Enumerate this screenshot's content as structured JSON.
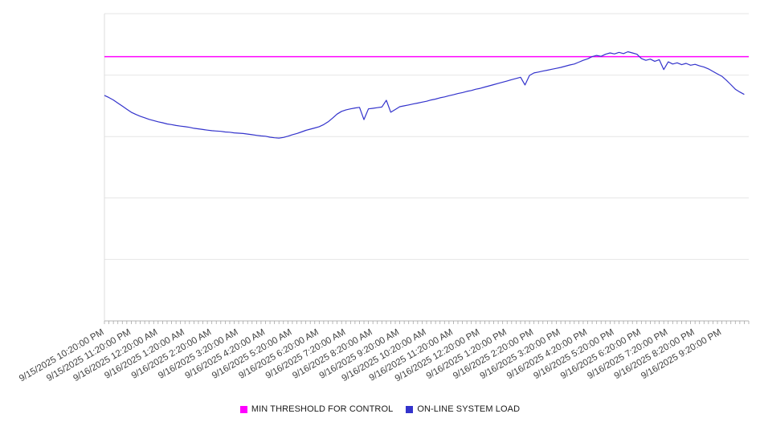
{
  "chart_data": {
    "type": "line",
    "title": "",
    "x_axis": {
      "domain_minutes": [
        0,
        1440
      ],
      "label_interval_minutes": 60,
      "minor_tick_minutes": 10,
      "tick_labels": [
        "9/15/2025 10:20:00 PM",
        "9/15/2025 11:20:00 PM",
        "9/16/2025 12:20:00 AM",
        "9/16/2025 1:20:00 AM",
        "9/16/2025 2:20:00 AM",
        "9/16/2025 3:20:00 AM",
        "9/16/2025 4:20:00 AM",
        "9/16/2025 5:20:00 AM",
        "9/16/2025 6:20:00 AM",
        "9/16/2025 7:20:00 AM",
        "9/16/2025 8:20:00 AM",
        "9/16/2025 9:20:00 AM",
        "9/16/2025 10:20:00 AM",
        "9/16/2025 11:20:00 AM",
        "9/16/2025 12:20:00 PM",
        "9/16/2025 1:20:00 PM",
        "9/16/2025 2:20:00 PM",
        "9/16/2025 3:20:00 PM",
        "9/16/2025 4:20:00 PM",
        "9/16/2025 5:20:00 PM",
        "9/16/2025 6:20:00 PM",
        "9/16/2025 7:20:00 PM",
        "9/16/2025 8:20:00 PM",
        "9/16/2025 9:20:00 PM"
      ]
    },
    "y_axis": {
      "min": 0,
      "max": 100,
      "gridline_step": 20,
      "labels_visible": false
    },
    "grid": true,
    "legend_position": "bottom-center",
    "series": [
      {
        "name": "MIN THRESHOLD FOR CONTROL",
        "type": "horizontal-threshold",
        "color": "#ff00ff",
        "value": 86
      },
      {
        "name": "ON-LINE SYSTEM LOAD",
        "type": "line",
        "color": "#3333cc",
        "interval_minutes": 10,
        "start_minute": 0,
        "values": [
          73.4,
          72.7,
          71.9,
          70.9,
          69.9,
          68.9,
          67.9,
          67.2,
          66.6,
          66.1,
          65.6,
          65.2,
          64.8,
          64.5,
          64.1,
          63.9,
          63.6,
          63.4,
          63.2,
          63.0,
          62.7,
          62.5,
          62.3,
          62.1,
          61.9,
          61.8,
          61.7,
          61.5,
          61.4,
          61.2,
          61.1,
          61.0,
          60.8,
          60.6,
          60.4,
          60.2,
          60.1,
          59.8,
          59.6,
          59.5,
          59.7,
          60.1,
          60.6,
          61.0,
          61.5,
          62.0,
          62.4,
          62.8,
          63.2,
          63.9,
          64.8,
          66.0,
          67.3,
          68.2,
          68.7,
          69.0,
          69.3,
          69.5,
          65.5,
          69.0,
          69.2,
          69.4,
          69.6,
          71.8,
          67.9,
          68.8,
          69.7,
          70.0,
          70.3,
          70.6,
          70.9,
          71.2,
          71.5,
          71.9,
          72.2,
          72.6,
          72.9,
          73.3,
          73.6,
          74.0,
          74.3,
          74.7,
          75.0,
          75.4,
          75.7,
          76.1,
          76.5,
          76.9,
          77.3,
          77.7,
          78.1,
          78.5,
          78.9,
          79.3,
          76.8,
          79.9,
          80.7,
          81.0,
          81.3,
          81.6,
          81.9,
          82.2,
          82.5,
          82.9,
          83.3,
          83.6,
          84.2,
          84.8,
          85.3,
          86.0,
          86.4,
          86.1,
          86.8,
          87.2,
          86.9,
          87.4,
          87.0,
          87.6,
          87.2,
          86.8,
          85.4,
          84.8,
          85.2,
          84.5,
          85.0,
          81.8,
          84.3,
          83.6,
          84.0,
          83.4,
          83.8,
          83.2,
          83.5,
          83.0,
          82.6,
          82.0,
          81.2,
          80.4,
          79.6,
          78.3,
          76.9,
          75.4,
          74.5,
          73.7
        ]
      }
    ],
    "colors": {
      "gridline": "#e6e6e6",
      "axis": "#b3b3b3",
      "tick": "#a6a6a6",
      "label_text": "#404040"
    }
  },
  "legend": {
    "items": [
      {
        "label": "MIN THRESHOLD FOR CONTROL"
      },
      {
        "label": "ON-LINE SYSTEM LOAD"
      }
    ]
  }
}
